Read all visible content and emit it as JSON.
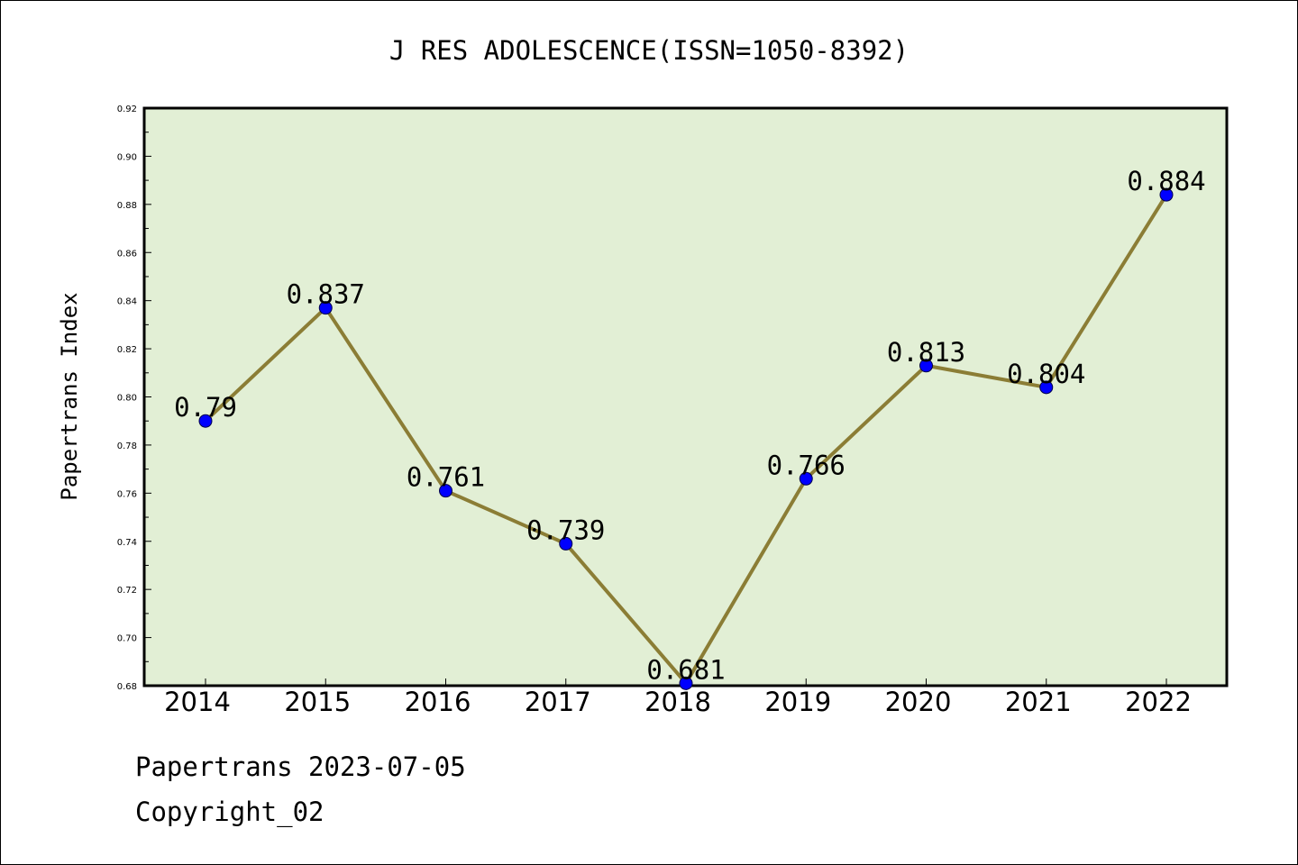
{
  "chart_data": {
    "type": "line",
    "title": "J RES ADOLESCENCE(ISSN=1050-8392)",
    "xlabel": "",
    "ylabel": "Papertrans Index",
    "categories": [
      "2014",
      "2015",
      "2016",
      "2017",
      "2018",
      "2019",
      "2020",
      "2021",
      "2022"
    ],
    "series": [
      {
        "values": [
          0.79,
          0.837,
          0.761,
          0.739,
          0.681,
          0.766,
          0.813,
          0.804,
          0.884
        ],
        "labels": [
          "0.79",
          "0.837",
          "0.761",
          "0.739",
          "0.681",
          "0.766",
          "0.813",
          "0.804",
          "0.884"
        ],
        "line_color": "#8b7d35",
        "marker_color": "#0000ff"
      }
    ],
    "ylim": [
      0.68,
      0.92
    ],
    "yticks": [
      "0.68",
      "0.70",
      "0.72",
      "0.74",
      "0.76",
      "0.78",
      "0.80",
      "0.82",
      "0.84",
      "0.86",
      "0.88",
      "0.90",
      "0.92"
    ],
    "grid": false,
    "legend": "none",
    "plot_background": "#e2efd5"
  },
  "footer": {
    "line1": "Papertrans 2023-07-05",
    "line2": "Copyright_02"
  }
}
